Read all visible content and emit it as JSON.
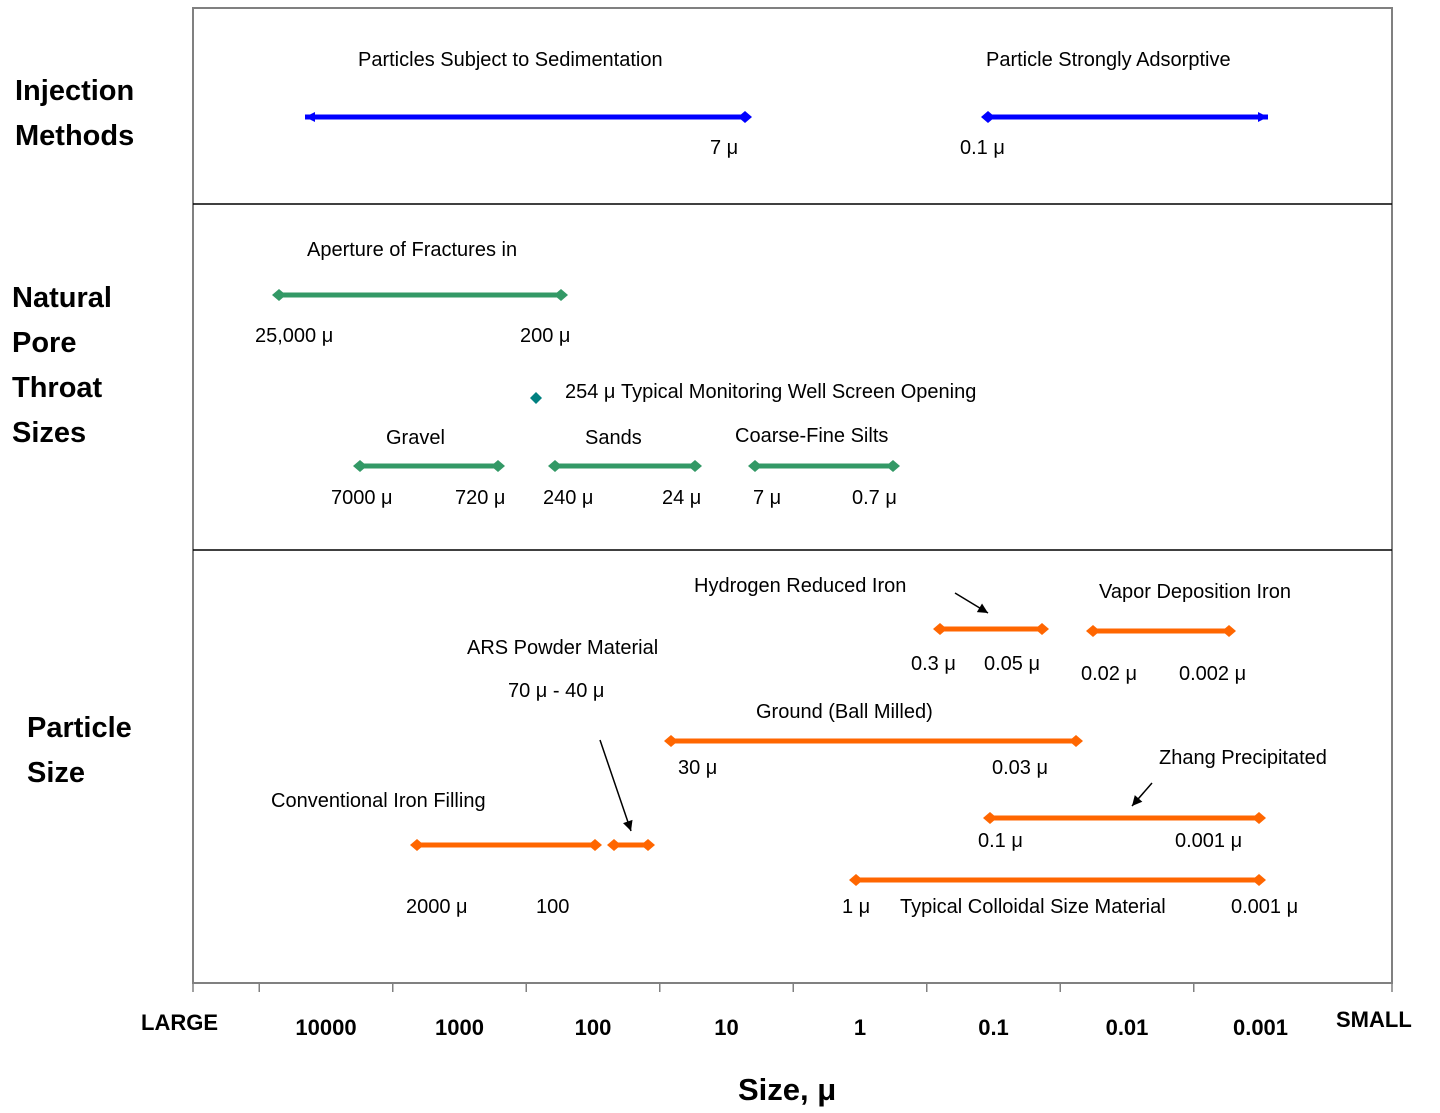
{
  "colors": {
    "injection": "#0000ff",
    "natural": "#339966",
    "well_marker": "#008080",
    "particle": "#ff6600",
    "frame": "#808080"
  },
  "row_labels": {
    "injection": [
      "Injection",
      "Methods"
    ],
    "natural": [
      "Natural",
      "Pore",
      "Throat",
      "Sizes"
    ],
    "particle": [
      "Particle",
      "Size"
    ]
  },
  "chart_data": {
    "type": "range",
    "x_scale": "log",
    "x_direction": "decreasing",
    "xlim": [
      100000,
      0.0001
    ],
    "x_ticks": [
      {
        "value": 10000,
        "label": "10000"
      },
      {
        "value": 1000,
        "label": "1000"
      },
      {
        "value": 100,
        "label": "100"
      },
      {
        "value": 10,
        "label": "10"
      },
      {
        "value": 1,
        "label": "1"
      },
      {
        "value": 0.1,
        "label": "0.1"
      },
      {
        "value": 0.01,
        "label": "0.01"
      },
      {
        "value": 0.001,
        "label": "0.001"
      }
    ],
    "x_end_labels": {
      "left": "LARGE",
      "right": "SMALL"
    },
    "xlabel": "Size, μ",
    "grid": false,
    "rows": [
      {
        "id": "injection",
        "ranges": [
          {
            "label": "Particles Subject to Sedimentation",
            "from": 40000,
            "to": 7,
            "arrow_from": true,
            "value_labels": [
              "7 μ"
            ]
          },
          {
            "label": "Particle Strongly Adsorptive",
            "from": 0.1,
            "to": 0.0008,
            "arrow_to": true,
            "value_labels": [
              "0.1 μ"
            ]
          }
        ]
      },
      {
        "id": "natural",
        "ranges": [
          {
            "label": "Aperture of Fractures in",
            "from": 25000,
            "to": 200,
            "value_labels": [
              "25,000 μ",
              "200 μ"
            ]
          },
          {
            "label": "Gravel",
            "from": 7000,
            "to": 720,
            "value_labels": [
              "7000 μ",
              "720 μ"
            ]
          },
          {
            "label": "Sands",
            "from": 240,
            "to": 24,
            "value_labels": [
              "240 μ",
              "24 μ"
            ]
          },
          {
            "label": "Coarse-Fine Silts",
            "from": 7,
            "to": 0.7,
            "value_labels": [
              "7 μ",
              "0.7 μ"
            ]
          }
        ],
        "points": [
          {
            "label": "254  μ Typical Monitoring Well Screen Opening",
            "value": 254
          }
        ]
      },
      {
        "id": "particle",
        "ranges": [
          {
            "label": "Hydrogen Reduced Iron",
            "from": 0.3,
            "to": 0.05,
            "value_labels": [
              "0.3 μ",
              "0.05 μ"
            ]
          },
          {
            "label": "Vapor Deposition Iron",
            "from": 0.02,
            "to": 0.002,
            "value_labels": [
              "0.02 μ",
              "0.002 μ"
            ]
          },
          {
            "label": "Ground (Ball Milled)",
            "from": 30,
            "to": 0.03,
            "value_labels": [
              "30 μ",
              "0.03 μ"
            ]
          },
          {
            "label": "Zhang Precipitated",
            "from": 0.1,
            "to": 0.001,
            "value_labels": [
              "0.1 μ",
              "0.001 μ"
            ]
          },
          {
            "label": "Conventional Iron Filling",
            "from": 2000,
            "to": 100,
            "value_labels": [
              "2000 μ",
              "100"
            ]
          },
          {
            "label": "ARS Powder Material",
            "from": 70,
            "to": 40,
            "value_labels": [
              "70 μ  -  40 μ"
            ]
          },
          {
            "label": "Typical Colloidal Size Material",
            "from": 1,
            "to": 0.001,
            "value_labels": [
              "1 μ",
              "0.001 μ"
            ]
          }
        ]
      }
    ]
  }
}
